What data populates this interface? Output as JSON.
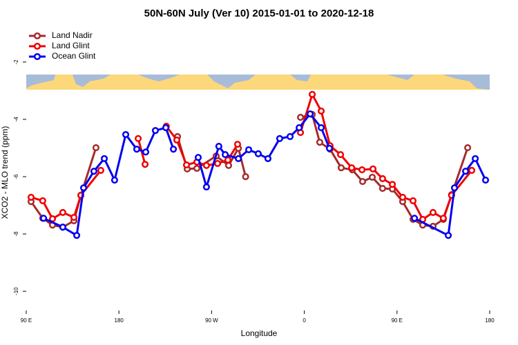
{
  "chart_data": {
    "type": "line",
    "title": "50N-60N July (Ver 10)   2015-01-01 to 2020-12-18",
    "xlabel": "Longitude",
    "ylabel": "XCO2 - MLO trend (ppm)",
    "xlim": [
      90,
      540
    ],
    "ylim": [
      -10.67,
      -0.75
    ],
    "xticks": [
      {
        "value": 90,
        "label": "90 E"
      },
      {
        "value": 180,
        "label": "180"
      },
      {
        "value": 270,
        "label": "90 W"
      },
      {
        "value": 360,
        "label": "0"
      },
      {
        "value": 450,
        "label": "90 E"
      },
      {
        "value": 540,
        "label": "180"
      }
    ],
    "yticks": [
      -10,
      -8,
      -6,
      -4,
      -2
    ],
    "legend": "top-left",
    "series": [
      {
        "name": "Land Nadir",
        "color": "#a52a2a",
        "x": [
          94.7,
          106,
          115.5,
          125.5,
          136.3,
          143,
          157.7,
          null,
          236.9,
          246.3,
          255.7,
          274.4,
          286.5,
          296,
          303,
          null,
          356.3,
          367.7,
          375,
          385,
          395.8,
          406.6,
          416.6,
          426,
          436,
          445.5,
          455.5,
          465.6,
          475,
          485,
          495,
          503,
          518.6
        ],
        "values": [
          -6.87,
          -7.45,
          -7.69,
          -7.76,
          -7.54,
          -6.65,
          -4.99,
          null,
          -4.6,
          -5.73,
          -5.71,
          -5.28,
          -5.61,
          -5.01,
          -6.0,
          null,
          -3.93,
          -3.83,
          -4.8,
          -5.04,
          -5.69,
          -5.76,
          -6.17,
          -6.02,
          -6.41,
          -6.43,
          -6.87,
          -7.49,
          -7.69,
          -7.73,
          -7.49,
          -6.63,
          -4.99
        ]
      },
      {
        "name": "Land Glint",
        "color": "#ee0000",
        "x": [
          94.7,
          106,
          115.5,
          125.5,
          136.3,
          143,
          162.4,
          null,
          198.7,
          205.4,
          null,
          226,
          236.2,
          245.6,
          255.7,
          265,
          275.8,
          285.8,
          295.2,
          null,
          356.3,
          367.7,
          376.4,
          385,
          395.2,
          406,
          416,
          426.7,
          436,
          445.5,
          455.5,
          465.6,
          475,
          485,
          495,
          503,
          522.6
        ],
        "values": [
          -6.72,
          -6.84,
          -7.47,
          -7.25,
          -7.42,
          -6.65,
          -5.78,
          null,
          -4.67,
          -5.57,
          null,
          -4.24,
          -4.72,
          -5.59,
          -5.49,
          -5.61,
          -5.54,
          -5.42,
          -4.87,
          null,
          -4.46,
          -3.13,
          -3.71,
          -4.92,
          -5.23,
          -5.69,
          -5.76,
          -5.73,
          -6.07,
          -6.27,
          -6.72,
          -6.84,
          -7.49,
          -7.25,
          -7.45,
          -6.65,
          -5.78
        ]
      },
      {
        "name": "Ocean Glint",
        "color": "#0000ee",
        "x": [
          106.8,
          125.5,
          139,
          145.7,
          155.7,
          165.8,
          175.8,
          186.6,
          197.3,
          206,
          215.4,
          225.5,
          232.9,
          null,
          257,
          265,
          277,
          283.2,
          296,
          306,
          315.3,
          324.7,
          336.1,
          346.2,
          355,
          365.7,
          376.4,
          384.4,
          null,
          467,
          499.8,
          505.8,
          516.6,
          526,
          536
        ],
        "values": [
          -7.45,
          -7.76,
          -8.05,
          -6.39,
          -5.81,
          -5.37,
          -6.12,
          -4.53,
          -5.04,
          -5.14,
          -4.39,
          -4.29,
          -5.04,
          null,
          -5.33,
          -6.36,
          -4.94,
          -5.23,
          -5.37,
          -5.06,
          -5.2,
          -5.37,
          -4.67,
          -4.6,
          -4.29,
          -3.81,
          -4.29,
          -5.01,
          null,
          -7.45,
          -8.05,
          -6.39,
          -5.81,
          -5.37,
          -6.12
        ]
      }
    ]
  }
}
